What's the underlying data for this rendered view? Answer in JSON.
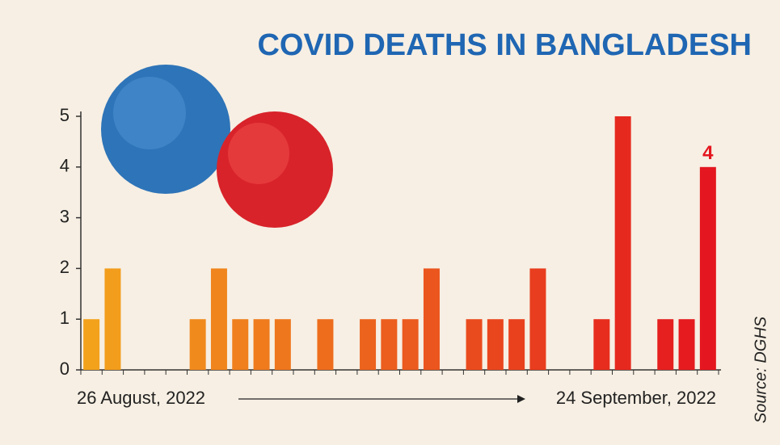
{
  "chart_data": {
    "type": "bar",
    "title": "COVID DEATHS IN BANGLADESH",
    "categories": [
      "26 August, 2022",
      null,
      null,
      null,
      null,
      null,
      null,
      null,
      null,
      null,
      null,
      null,
      null,
      null,
      null,
      null,
      null,
      null,
      null,
      null,
      null,
      null,
      null,
      null,
      null,
      null,
      null,
      null,
      null,
      "24 September, 2022"
    ],
    "values": [
      1,
      2,
      0,
      0,
      0,
      1,
      2,
      1,
      1,
      1,
      0,
      1,
      0,
      1,
      1,
      1,
      2,
      0,
      1,
      1,
      1,
      2,
      0,
      0,
      1,
      5,
      0,
      1,
      1,
      4
    ],
    "color_gradient": [
      "#f3a21c",
      "#e4161f"
    ],
    "label_color": "#e4161f",
    "labeled_index": 29,
    "ylim": [
      0,
      5
    ],
    "yticks": [
      0,
      1,
      2,
      3,
      4,
      5
    ],
    "grid": false,
    "source": "Source: DGHS"
  }
}
